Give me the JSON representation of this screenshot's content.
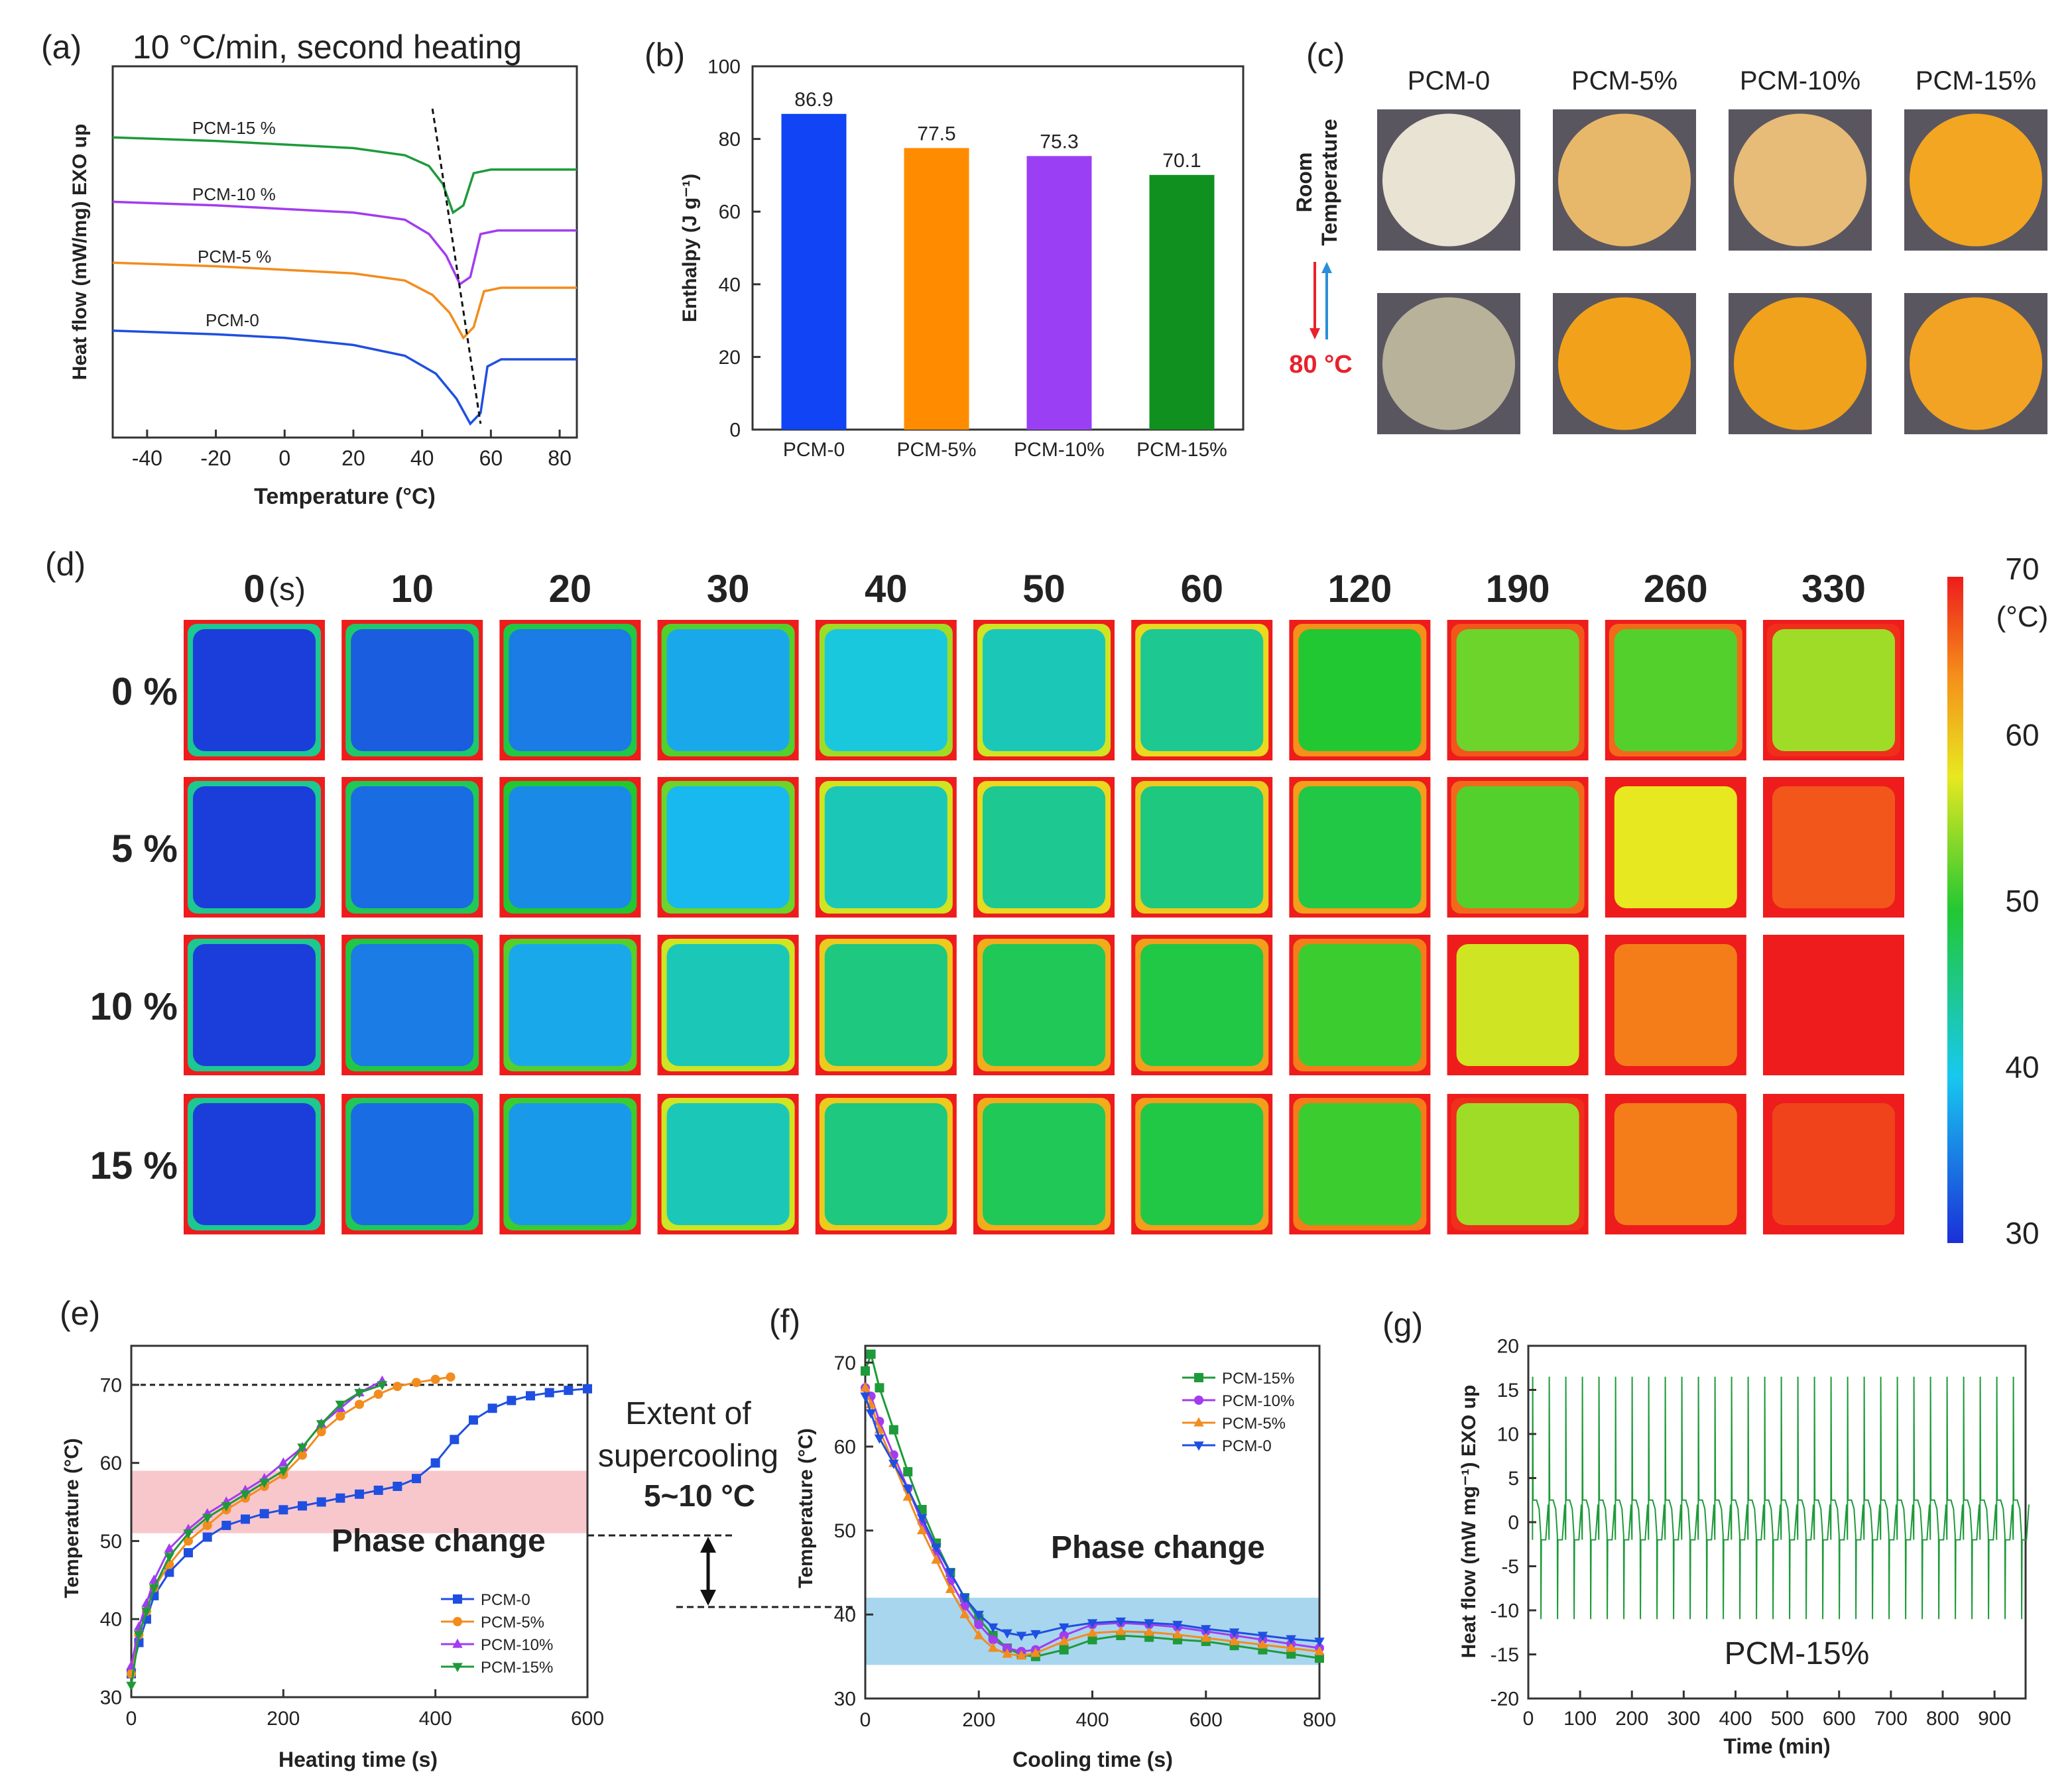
{
  "colors": {
    "blue": "#1f4fe0",
    "orange": "#f28c1e",
    "purple": "#a23cf0",
    "green": "#1e9a3a",
    "bar_blue": "#1044f5",
    "bar_orange": "#ff8c00",
    "bar_purple": "#9b3ff5",
    "bar_green": "#10911f",
    "pink_band": "#f8c7cc",
    "blue_band": "#a9d6ef",
    "red_text": "#e8212b"
  },
  "panels": {
    "a": {
      "label": "(a)",
      "title": "10 °C/min, second heating"
    },
    "b": {
      "label": "(b)"
    },
    "c": {
      "label": "(c)",
      "row_top": "Room\nTemperature",
      "row_top_l1": "Room",
      "row_top_l2": "Temperature",
      "row_bottom": "80 °C",
      "columns": [
        "PCM-0",
        "PCM-5%",
        "PCM-10%",
        "PCM-15%"
      ],
      "sample_colors_room": [
        "#e9e3d4",
        "#e8b86a",
        "#e6bc78",
        "#f2a622"
      ],
      "sample_colors_hot": [
        "#b8b29a",
        "#f2a21a",
        "#f0a21c",
        "#f2a323"
      ]
    },
    "d": {
      "label": "(d)",
      "time_unit": "(s)",
      "times": [
        "0",
        "10",
        "20",
        "30",
        "40",
        "50",
        "60",
        "120",
        "190",
        "260",
        "330"
      ],
      "rows": [
        "0 %",
        "5 %",
        "10 %",
        "15 %"
      ],
      "temps_C": [
        [
          31,
          33,
          35,
          38,
          41,
          43,
          45,
          50,
          53,
          52,
          55
        ],
        [
          31,
          34,
          36,
          39,
          43,
          45,
          46,
          49,
          52,
          58,
          67
        ],
        [
          31,
          35,
          38,
          43,
          46,
          48,
          49,
          51,
          57,
          65,
          70
        ],
        [
          31,
          34,
          37,
          43,
          46,
          48,
          49,
          51,
          55,
          65,
          68
        ]
      ],
      "colorbar": {
        "min": 30,
        "max": 70,
        "ticks": [
          "70",
          "60",
          "50",
          "40",
          "30"
        ],
        "unit": "(°C)"
      }
    },
    "e": {
      "label": "(e)"
    },
    "f": {
      "label": "(f)"
    },
    "g": {
      "label": "(g)"
    }
  },
  "annotations": {
    "extent_l1": "Extent of",
    "extent_l2": "supercooling",
    "extent_l3": "5~10 °C",
    "phase_change_e": "Phase change",
    "phase_change_f": "Phase change",
    "pcm15": "PCM-15%"
  },
  "chart_data": [
    {
      "id": "a",
      "type": "line",
      "title": "10 °C/min, second heating",
      "xlabel": "Temperature (°C)",
      "ylabel": "Heat flow (mW/mg) EXO up",
      "xlim": [
        -50,
        85
      ],
      "ylim": [
        0,
        1
      ],
      "xticks": [
        -40,
        -20,
        0,
        20,
        40,
        60,
        80
      ],
      "series": [
        {
          "name": "PCM-15 %",
          "x": [
            -50,
            -20,
            0,
            20,
            35,
            42,
            46,
            49,
            52,
            55,
            60,
            70,
            85
          ],
          "y": [
            0.82,
            0.81,
            0.8,
            0.79,
            0.77,
            0.74,
            0.69,
            0.61,
            0.63,
            0.72,
            0.73,
            0.73,
            0.73
          ]
        },
        {
          "name": "PCM-10 %",
          "x": [
            -50,
            -20,
            0,
            20,
            35,
            42,
            47,
            51,
            54,
            57,
            62,
            70,
            85
          ],
          "y": [
            0.64,
            0.63,
            0.62,
            0.61,
            0.59,
            0.55,
            0.49,
            0.41,
            0.43,
            0.55,
            0.56,
            0.56,
            0.56
          ]
        },
        {
          "name": "PCM-5 %",
          "x": [
            -50,
            -20,
            0,
            20,
            35,
            43,
            48,
            52,
            55,
            58,
            63,
            70,
            85
          ],
          "y": [
            0.47,
            0.46,
            0.45,
            0.44,
            0.42,
            0.38,
            0.33,
            0.26,
            0.29,
            0.39,
            0.4,
            0.4,
            0.4
          ]
        },
        {
          "name": "PCM-0",
          "x": [
            -50,
            -20,
            0,
            20,
            35,
            44,
            50,
            54,
            57,
            59,
            63,
            70,
            85
          ],
          "y": [
            0.28,
            0.27,
            0.26,
            0.24,
            0.21,
            0.16,
            0.09,
            0.02,
            0.05,
            0.18,
            0.2,
            0.2,
            0.2
          ]
        }
      ],
      "guide_line": {
        "x": [
          43,
          57
        ],
        "y": [
          0.9,
          0.02
        ]
      }
    },
    {
      "id": "b",
      "type": "bar",
      "xlabel": "",
      "ylabel": "Enthalpy (J g⁻¹)",
      "categories": [
        "PCM-0",
        "PCM-5%",
        "PCM-10%",
        "PCM-15%"
      ],
      "values": [
        86.9,
        77.5,
        75.3,
        70.1
      ],
      "ylim": [
        0,
        100
      ],
      "yticks": [
        0,
        20,
        40,
        60,
        80,
        100
      ]
    },
    {
      "id": "e",
      "type": "line",
      "xlabel": "Heating time (s)",
      "ylabel": "Temperature (°C)",
      "xlim": [
        0,
        600
      ],
      "ylim": [
        30,
        75
      ],
      "xticks": [
        0,
        200,
        400,
        600
      ],
      "yticks": [
        30,
        40,
        50,
        60,
        70
      ],
      "reference_line": 70,
      "band": [
        51,
        59
      ],
      "series": [
        {
          "name": "PCM-0",
          "x": [
            0,
            10,
            20,
            30,
            50,
            75,
            100,
            125,
            150,
            175,
            200,
            225,
            250,
            275,
            300,
            325,
            350,
            375,
            400,
            425,
            450,
            475,
            500,
            525,
            550,
            575,
            600
          ],
          "y": [
            33,
            37,
            40,
            43,
            46,
            48.5,
            50.5,
            52,
            52.8,
            53.5,
            54,
            54.5,
            55,
            55.5,
            56,
            56.5,
            57,
            58,
            60,
            63,
            65.5,
            67,
            68,
            68.6,
            69,
            69.3,
            69.5
          ]
        },
        {
          "name": "PCM-5%",
          "x": [
            0,
            10,
            20,
            30,
            50,
            75,
            100,
            125,
            150,
            175,
            200,
            225,
            250,
            275,
            300,
            325,
            350,
            375,
            400,
            420
          ],
          "y": [
            33,
            38,
            41,
            44,
            47,
            50,
            52,
            54,
            55.5,
            57,
            58.5,
            61,
            64,
            66,
            67.5,
            68.8,
            69.8,
            70.3,
            70.7,
            71
          ]
        },
        {
          "name": "PCM-10%",
          "x": [
            0,
            10,
            20,
            30,
            50,
            75,
            100,
            125,
            150,
            175,
            200,
            225,
            250,
            275,
            300,
            330
          ],
          "y": [
            34,
            39,
            42,
            45,
            49,
            51.5,
            53.5,
            55,
            56.5,
            58,
            60,
            62,
            65,
            67,
            69,
            70.5
          ]
        },
        {
          "name": "PCM-15%",
          "x": [
            0,
            10,
            20,
            30,
            50,
            75,
            100,
            125,
            150,
            175,
            200,
            225,
            250,
            275,
            300,
            330
          ],
          "y": [
            31.5,
            38,
            41,
            44,
            48,
            51,
            53,
            54.5,
            56,
            57.5,
            59,
            62,
            65,
            67.5,
            69,
            70
          ]
        }
      ]
    },
    {
      "id": "f",
      "type": "line",
      "xlabel": "Cooling time (s)",
      "ylabel": "Temperature (°C)",
      "xlim": [
        0,
        800
      ],
      "ylim": [
        30,
        72
      ],
      "xticks": [
        0,
        200,
        400,
        600,
        800
      ],
      "yticks": [
        30,
        40,
        50,
        60,
        70
      ],
      "band": [
        34,
        42
      ],
      "series": [
        {
          "name": "PCM-15%",
          "x": [
            0,
            10,
            25,
            50,
            75,
            100,
            125,
            150,
            175,
            200,
            225,
            250,
            275,
            300,
            350,
            400,
            450,
            500,
            550,
            600,
            650,
            700,
            750,
            800
          ],
          "y": [
            69,
            71,
            67,
            62,
            57,
            52.5,
            48.5,
            45,
            42,
            39.5,
            37.5,
            36,
            35.2,
            35,
            35.8,
            37,
            37.5,
            37.3,
            37,
            36.8,
            36.3,
            35.8,
            35.3,
            34.8
          ]
        },
        {
          "name": "PCM-10%",
          "x": [
            0,
            10,
            25,
            50,
            75,
            100,
            125,
            150,
            175,
            200,
            225,
            250,
            275,
            300,
            350,
            400,
            450,
            500,
            550,
            600,
            650,
            700,
            750,
            800
          ],
          "y": [
            67,
            66,
            63,
            59,
            55,
            51,
            47.5,
            44,
            41,
            38.8,
            37,
            36,
            35.6,
            35.8,
            37.5,
            38.8,
            39,
            38.8,
            38.5,
            38,
            37.5,
            37,
            36.5,
            36
          ]
        },
        {
          "name": "PCM-5%",
          "x": [
            0,
            10,
            25,
            50,
            75,
            100,
            125,
            150,
            175,
            200,
            225,
            250,
            275,
            300,
            350,
            400,
            450,
            500,
            550,
            600,
            650,
            700,
            750,
            800
          ],
          "y": [
            67,
            65,
            62,
            58,
            54,
            50,
            46.5,
            43,
            40,
            37.5,
            36,
            35.3,
            35.1,
            35.4,
            36.8,
            37.8,
            38,
            37.9,
            37.6,
            37.2,
            36.8,
            36.4,
            36,
            35.6
          ]
        },
        {
          "name": "PCM-0",
          "x": [
            0,
            10,
            25,
            50,
            75,
            100,
            125,
            150,
            175,
            200,
            225,
            250,
            275,
            300,
            350,
            400,
            450,
            500,
            550,
            600,
            650,
            700,
            750,
            800
          ],
          "y": [
            66,
            64,
            61,
            58,
            55,
            51.5,
            48,
            45,
            42,
            40,
            38.5,
            37.8,
            37.5,
            37.7,
            38.5,
            39,
            39.2,
            39,
            38.8,
            38.3,
            37.9,
            37.5,
            37.1,
            36.8
          ]
        }
      ]
    },
    {
      "id": "g",
      "type": "line",
      "xlabel": "Time (min)",
      "ylabel": "Heat flow (mW mg⁻¹) EXO up",
      "xlim": [
        0,
        960
      ],
      "ylim": [
        -20,
        20
      ],
      "xticks": [
        0,
        100,
        200,
        300,
        400,
        500,
        600,
        700,
        800,
        900
      ],
      "yticks": [
        -20,
        -15,
        -10,
        -5,
        0,
        5,
        10,
        15,
        20
      ],
      "series": [
        {
          "name": "PCM-15%",
          "cycles": 30,
          "period_min": 32,
          "peak_max": 16.5,
          "peak_min": -11,
          "baseline_high": 2.5,
          "baseline_low": -2
        }
      ]
    }
  ]
}
